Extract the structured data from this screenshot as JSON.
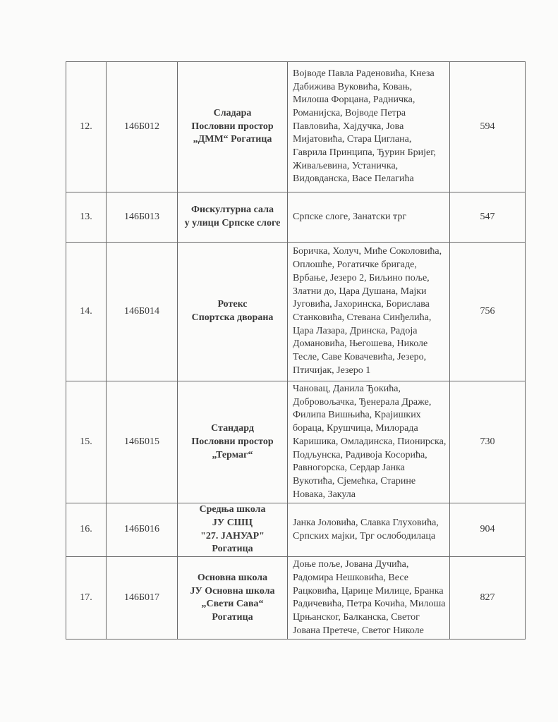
{
  "rows": [
    {
      "num": "12.",
      "code": "146Б012",
      "place": [
        "Сладара",
        "Пословни простор",
        "„ДММ“ Рогатица"
      ],
      "streets": "Војводе Павла Раденовића, Кнеза Дабижива Вуковића, Ковањ, Милоша Форцана, Радничка, Романијска, Војводе Петра Павловића, Хајдучка, Јова Мијатовића, Стара Циглана, Гаврила Принципа, Ђурин Бријег, Живаљевина, Устаничка, Видовданска, Васе Пелагића",
      "voters": "594"
    },
    {
      "num": "13.",
      "code": "146Б013",
      "place": [
        "Фискултурна сала",
        "у улици Српске слоге"
      ],
      "streets": "Српске слоге, Занатски трг",
      "voters": "547"
    },
    {
      "num": "14.",
      "code": "146Б014",
      "place": [
        "Ротекс",
        "Спортска дворана"
      ],
      "streets": "Боричка, Холуч, Миће Соколовића, Оплошће, Рогатичке бригаде, Врбање, Језеро 2, Биљино поље, Златни до,  Цара Душана, Мајки Југовића, Јахоринска, Борислава Станковића, Стевана Синђелића, Цара Лазара, Дринска, Радоја Домановића, Његошева, Николе Тесле, Саве Ковачевића, Језеро, Птичијак, Језеро 1",
      "voters": "756"
    },
    {
      "num": "15.",
      "code": "146Б015",
      "place": [
        "Стандард",
        "Пословни простор",
        "„Термаг“"
      ],
      "streets": "Чановац, Данила Ђокића, Добровољачка, Ђенерала Драже, Филипа Вишњића, Крајишких бораца, Крушчица, Милорада Каришика, Омладинска, Пионирска, Подљунска, Радивоја Косорића, Равногорска, Сердар Јанка Вукотића, Сјемећка, Старине Новака, Закула",
      "voters": "730"
    },
    {
      "num": "16.",
      "code": "146Б016",
      "place": [
        "Средња школа",
        "ЈУ СШЦ",
        "\"27. ЈАНУАР\"",
        "Рогатица"
      ],
      "streets": "Јанка Јоловића, Славка Глуховића, Српских мајки, Трг ослободилаца",
      "voters": "904"
    },
    {
      "num": "17.",
      "code": "146Б017",
      "place": [
        "Основна школа",
        "ЈУ Основна школа",
        "„Свети Сава“",
        "Рогатица"
      ],
      "streets": "Доње поље, Јована Дучића, Радомира Нешковића, Весе Рацковића, Царице Милице, Бранка Радичевића, Петра Кочића, Милоша Црњанског, Балканска, Светог Јована Претече, Светог Николе",
      "voters": "827"
    }
  ]
}
